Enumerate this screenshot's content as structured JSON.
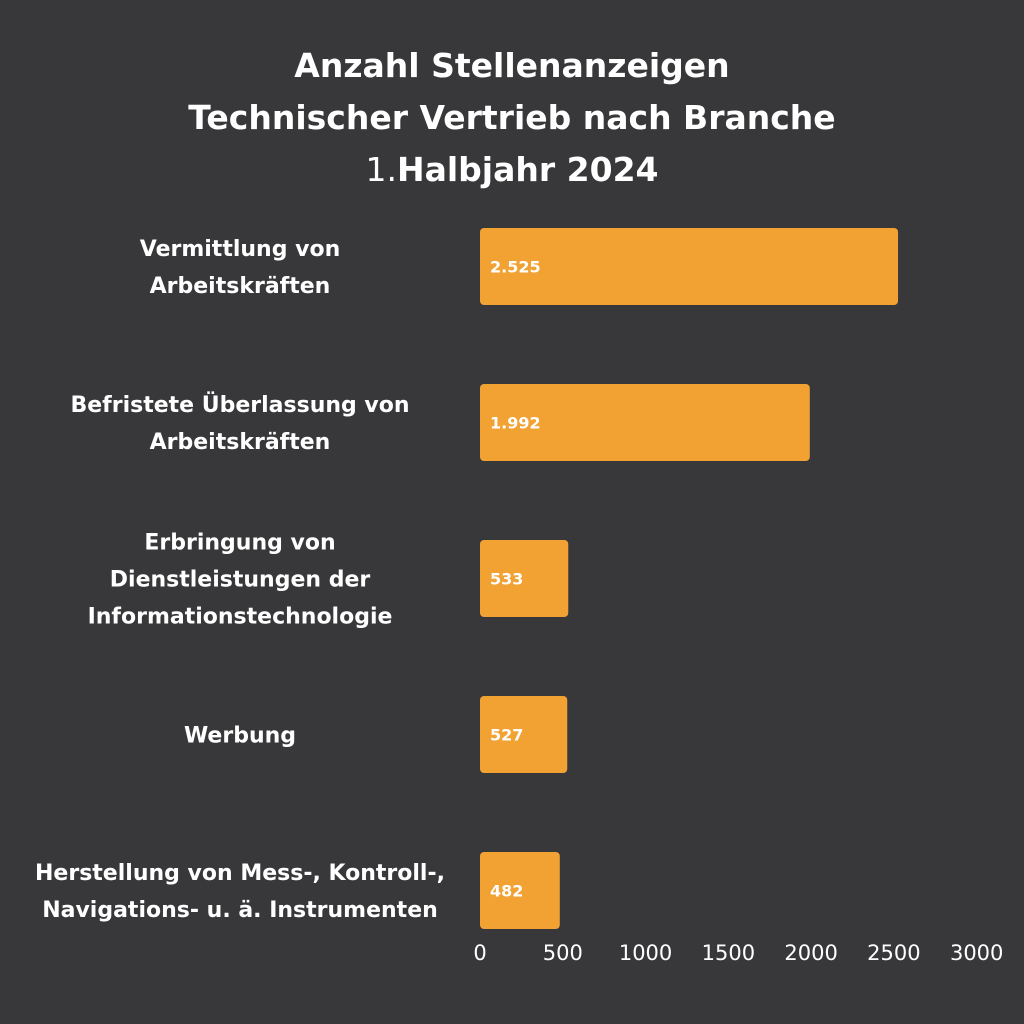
{
  "chart_data": {
    "type": "bar",
    "orientation": "horizontal",
    "title_lines": [
      "Anzahl Stellenanzeigen",
      "Technischer Vertrieb nach Branche"
    ],
    "title_line3_number": "1.",
    "title_line3_rest": "Halbjahr 2024",
    "categories": [
      [
        "Vermittlung von",
        "Arbeitskräften"
      ],
      [
        "Befristete Überlassung von",
        "Arbeitskräften"
      ],
      [
        "Erbringung von",
        "Dienstleistungen der",
        "Informationstechnologie"
      ],
      [
        "Werbung"
      ],
      [
        "Herstellung von Mess-, Kontroll-,",
        "Navigations- u. ä. Instrumenten"
      ]
    ],
    "values": [
      2525,
      1992,
      533,
      527,
      482
    ],
    "value_labels": [
      "2.525",
      "1.992",
      "533",
      "527",
      "482"
    ],
    "xlim": [
      0,
      3000
    ],
    "x_ticks": [
      0,
      500,
      1000,
      1500,
      2000,
      2500,
      3000
    ],
    "bar_color": "#f2a133",
    "background_color": "#38383a",
    "grid": false
  }
}
